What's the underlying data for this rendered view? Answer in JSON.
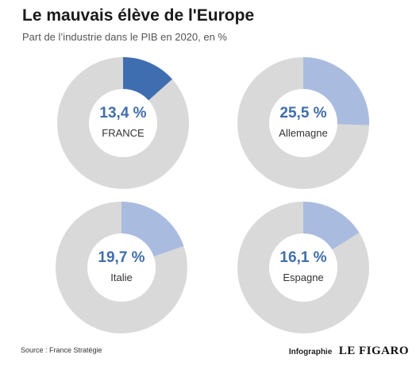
{
  "header": {
    "title": "Le mauvais élève de l'Europe",
    "subtitle": "Part de l’industrie dans le PIB en 2020, en %"
  },
  "chart_data": {
    "type": "pie",
    "title": "Le mauvais élève de l'Europe",
    "subtitle": "Part de l’industrie dans le PIB en 2020, en %",
    "charts": [
      {
        "label": "FRANCE",
        "value": 13.4,
        "display": "13,4 %",
        "color": "#3f6eb0"
      },
      {
        "label": "Allemagne",
        "value": 25.5,
        "display": "25,5 %",
        "color": "#a9bce0"
      },
      {
        "label": "Italie",
        "value": 19.7,
        "display": "19,7 %",
        "color": "#a9bce0"
      },
      {
        "label": "Espagne",
        "value": 16.1,
        "display": "16,1 %",
        "color": "#a9bce0"
      }
    ],
    "remainder_color": "#d9d9d9"
  },
  "footer": {
    "source": "Source : France Stratégie",
    "credit_prefix": "Infographie",
    "credit_brand": "LE FIGARO"
  }
}
